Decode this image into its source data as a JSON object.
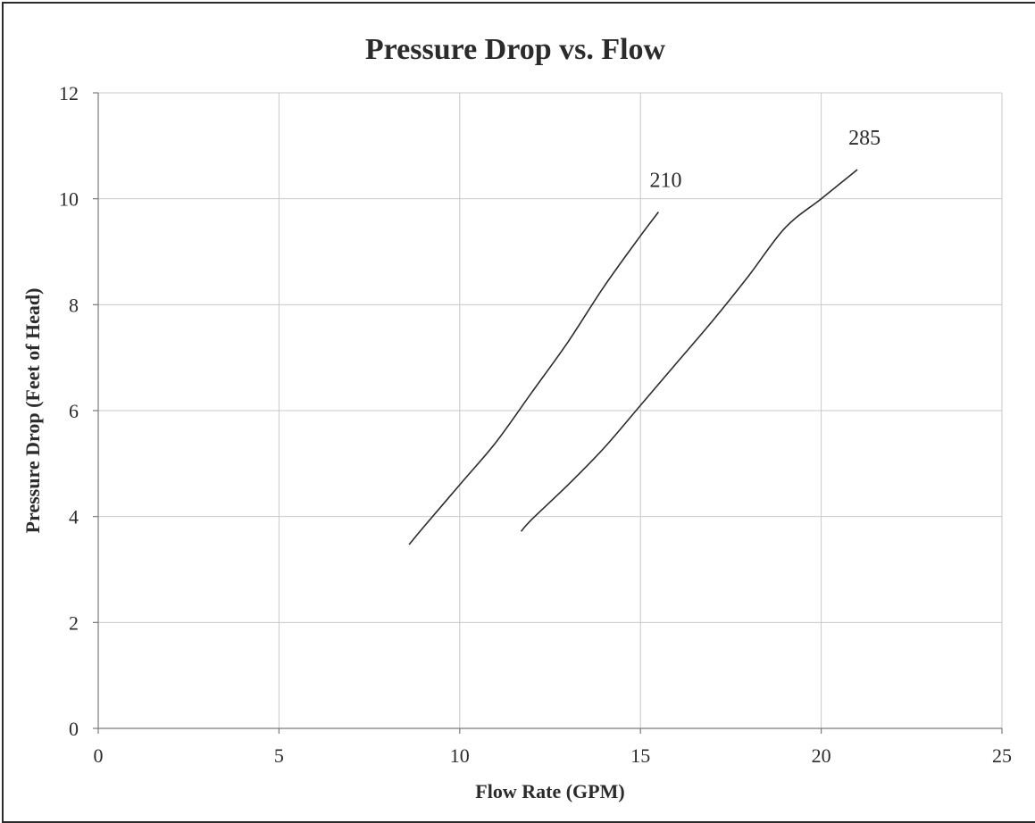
{
  "chart_data": {
    "type": "line",
    "title": "Pressure Drop vs. Flow",
    "xlabel": "Flow Rate (GPM)",
    "ylabel": "Pressure Drop (Feet of Head)",
    "xlim": [
      0,
      25
    ],
    "ylim": [
      0,
      12
    ],
    "xticks": [
      0,
      5,
      10,
      15,
      20,
      25
    ],
    "yticks": [
      0,
      2,
      4,
      6,
      8,
      10,
      12
    ],
    "grid": true,
    "series": [
      {
        "name": "210",
        "x": [
          8.6,
          9.0,
          10.0,
          11.0,
          12.0,
          13.0,
          14.0,
          15.0,
          15.5
        ],
        "y": [
          3.47,
          3.8,
          4.6,
          5.4,
          6.35,
          7.3,
          8.35,
          9.3,
          9.75
        ]
      },
      {
        "name": "285",
        "x": [
          11.7,
          12.0,
          13.0,
          14.0,
          15.0,
          16.0,
          17.0,
          18.0,
          19.0,
          20.0,
          21.0
        ],
        "y": [
          3.72,
          3.95,
          4.6,
          5.3,
          6.1,
          6.9,
          7.7,
          8.55,
          9.45,
          10.0,
          10.55
        ]
      }
    ]
  }
}
